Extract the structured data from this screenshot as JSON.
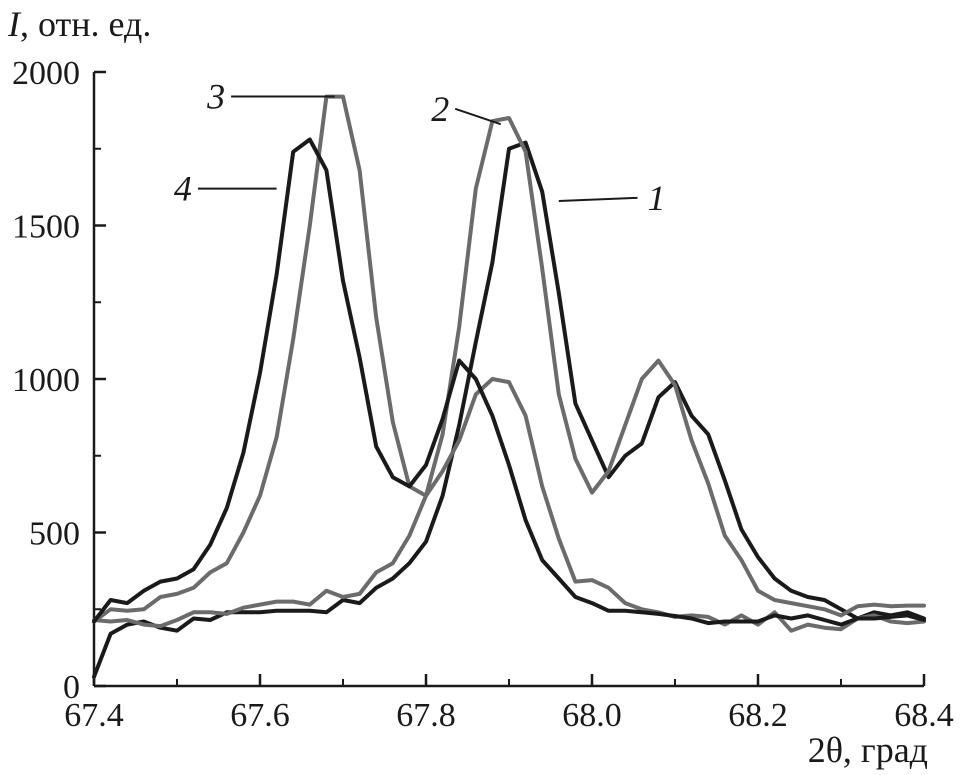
{
  "chart_data": {
    "type": "line",
    "ylabel_symbol": "I",
    "ylabel_rest": ", отн. ед.",
    "xlabel": "2θ, град",
    "xlim": [
      67.4,
      68.4
    ],
    "ylim": [
      0,
      2000
    ],
    "xticks": [
      "67.4",
      "67.6",
      "67.8",
      "68.0",
      "68.2",
      "68.4"
    ],
    "yticks": [
      "0",
      "500",
      "1000",
      "1500",
      "2000"
    ],
    "grid": false,
    "series": [
      {
        "name": "1",
        "color": "#1a1a1a",
        "points": [
          [
            67.4,
            30
          ],
          [
            67.42,
            170
          ],
          [
            67.44,
            200
          ],
          [
            67.46,
            210
          ],
          [
            67.48,
            190
          ],
          [
            67.5,
            180
          ],
          [
            67.52,
            220
          ],
          [
            67.54,
            215
          ],
          [
            67.56,
            240
          ],
          [
            67.58,
            240
          ],
          [
            67.6,
            240
          ],
          [
            67.62,
            245
          ],
          [
            67.64,
            245
          ],
          [
            67.66,
            245
          ],
          [
            67.68,
            240
          ],
          [
            67.7,
            280
          ],
          [
            67.72,
            270
          ],
          [
            67.74,
            320
          ],
          [
            67.76,
            350
          ],
          [
            67.78,
            400
          ],
          [
            67.8,
            470
          ],
          [
            67.82,
            620
          ],
          [
            67.84,
            850
          ],
          [
            67.86,
            1120
          ],
          [
            67.88,
            1380
          ],
          [
            67.9,
            1750
          ],
          [
            67.92,
            1770
          ],
          [
            67.94,
            1610
          ],
          [
            67.96,
            1280
          ],
          [
            67.98,
            920
          ],
          [
            68.0,
            800
          ],
          [
            68.02,
            680
          ],
          [
            68.04,
            750
          ],
          [
            68.06,
            790
          ],
          [
            68.08,
            940
          ],
          [
            68.1,
            990
          ],
          [
            68.12,
            880
          ],
          [
            68.14,
            820
          ],
          [
            68.16,
            670
          ],
          [
            68.18,
            510
          ],
          [
            68.2,
            420
          ],
          [
            68.22,
            350
          ],
          [
            68.24,
            310
          ],
          [
            68.26,
            290
          ],
          [
            68.28,
            280
          ],
          [
            68.3,
            250
          ],
          [
            68.32,
            220
          ],
          [
            68.34,
            240
          ],
          [
            68.36,
            230
          ],
          [
            68.38,
            240
          ],
          [
            68.4,
            220
          ]
        ]
      },
      {
        "name": "2",
        "color": "#6b6b6b",
        "points": [
          [
            67.4,
            215
          ],
          [
            67.42,
            210
          ],
          [
            67.44,
            215
          ],
          [
            67.46,
            200
          ],
          [
            67.48,
            195
          ],
          [
            67.5,
            215
          ],
          [
            67.52,
            240
          ],
          [
            67.54,
            240
          ],
          [
            67.56,
            235
          ],
          [
            67.58,
            255
          ],
          [
            67.6,
            265
          ],
          [
            67.62,
            275
          ],
          [
            67.64,
            275
          ],
          [
            67.66,
            265
          ],
          [
            67.68,
            310
          ],
          [
            67.7,
            290
          ],
          [
            67.72,
            300
          ],
          [
            67.74,
            370
          ],
          [
            67.76,
            400
          ],
          [
            67.78,
            490
          ],
          [
            67.8,
            620
          ],
          [
            67.82,
            820
          ],
          [
            67.84,
            1170
          ],
          [
            67.86,
            1620
          ],
          [
            67.88,
            1840
          ],
          [
            67.9,
            1850
          ],
          [
            67.92,
            1740
          ],
          [
            67.94,
            1360
          ],
          [
            67.96,
            950
          ],
          [
            67.98,
            740
          ],
          [
            68.0,
            630
          ],
          [
            68.02,
            700
          ],
          [
            68.04,
            850
          ],
          [
            68.06,
            1000
          ],
          [
            68.08,
            1060
          ],
          [
            68.1,
            980
          ],
          [
            68.12,
            800
          ],
          [
            68.14,
            660
          ],
          [
            68.16,
            490
          ],
          [
            68.18,
            410
          ],
          [
            68.2,
            310
          ],
          [
            68.22,
            280
          ],
          [
            68.24,
            270
          ],
          [
            68.26,
            260
          ],
          [
            68.28,
            250
          ],
          [
            68.3,
            230
          ],
          [
            68.32,
            260
          ],
          [
            68.34,
            265
          ],
          [
            68.36,
            260
          ],
          [
            68.38,
            262
          ],
          [
            68.4,
            262
          ]
        ]
      },
      {
        "name": "3",
        "color": "#6b6b6b",
        "points": [
          [
            67.4,
            210
          ],
          [
            67.42,
            250
          ],
          [
            67.44,
            245
          ],
          [
            67.46,
            250
          ],
          [
            67.48,
            290
          ],
          [
            67.5,
            300
          ],
          [
            67.52,
            320
          ],
          [
            67.54,
            370
          ],
          [
            67.56,
            400
          ],
          [
            67.58,
            500
          ],
          [
            67.6,
            620
          ],
          [
            67.62,
            810
          ],
          [
            67.64,
            1130
          ],
          [
            67.66,
            1500
          ],
          [
            67.68,
            1920
          ],
          [
            67.7,
            1920
          ],
          [
            67.72,
            1680
          ],
          [
            67.74,
            1200
          ],
          [
            67.76,
            860
          ],
          [
            67.78,
            650
          ],
          [
            67.8,
            620
          ],
          [
            67.82,
            700
          ],
          [
            67.84,
            800
          ],
          [
            67.86,
            950
          ],
          [
            67.88,
            1000
          ],
          [
            67.9,
            990
          ],
          [
            67.92,
            880
          ],
          [
            67.94,
            650
          ],
          [
            67.96,
            480
          ],
          [
            67.98,
            340
          ],
          [
            68.0,
            345
          ],
          [
            68.02,
            320
          ],
          [
            68.04,
            270
          ],
          [
            68.06,
            250
          ],
          [
            68.08,
            240
          ],
          [
            68.1,
            225
          ],
          [
            68.12,
            230
          ],
          [
            68.14,
            225
          ],
          [
            68.16,
            200
          ],
          [
            68.18,
            230
          ],
          [
            68.2,
            200
          ],
          [
            68.22,
            240
          ],
          [
            68.24,
            180
          ],
          [
            68.26,
            200
          ],
          [
            68.28,
            190
          ],
          [
            68.3,
            185
          ],
          [
            68.32,
            220
          ],
          [
            68.34,
            230
          ],
          [
            68.36,
            210
          ],
          [
            68.38,
            205
          ],
          [
            68.4,
            210
          ]
        ]
      },
      {
        "name": "4",
        "color": "#1a1a1a",
        "points": [
          [
            67.4,
            210
          ],
          [
            67.42,
            280
          ],
          [
            67.44,
            270
          ],
          [
            67.46,
            310
          ],
          [
            67.48,
            340
          ],
          [
            67.5,
            350
          ],
          [
            67.52,
            380
          ],
          [
            67.54,
            460
          ],
          [
            67.56,
            580
          ],
          [
            67.58,
            760
          ],
          [
            67.6,
            1020
          ],
          [
            67.62,
            1340
          ],
          [
            67.64,
            1740
          ],
          [
            67.66,
            1780
          ],
          [
            67.68,
            1680
          ],
          [
            67.7,
            1320
          ],
          [
            67.72,
            1070
          ],
          [
            67.74,
            780
          ],
          [
            67.76,
            680
          ],
          [
            67.78,
            650
          ],
          [
            67.8,
            720
          ],
          [
            67.82,
            870
          ],
          [
            67.84,
            1060
          ],
          [
            67.86,
            1000
          ],
          [
            67.88,
            880
          ],
          [
            67.9,
            720
          ],
          [
            67.92,
            540
          ],
          [
            67.94,
            410
          ],
          [
            67.96,
            350
          ],
          [
            67.98,
            290
          ],
          [
            68.0,
            270
          ],
          [
            68.02,
            245
          ],
          [
            68.04,
            245
          ],
          [
            68.06,
            240
          ],
          [
            68.08,
            235
          ],
          [
            68.1,
            228
          ],
          [
            68.12,
            220
          ],
          [
            68.14,
            205
          ],
          [
            68.16,
            210
          ],
          [
            68.18,
            210
          ],
          [
            68.2,
            210
          ],
          [
            68.22,
            230
          ],
          [
            68.24,
            220
          ],
          [
            68.26,
            230
          ],
          [
            68.28,
            215
          ],
          [
            68.3,
            200
          ],
          [
            68.32,
            220
          ],
          [
            68.34,
            220
          ],
          [
            68.36,
            225
          ],
          [
            68.38,
            230
          ],
          [
            68.4,
            215
          ]
        ]
      }
    ],
    "series_labels": [
      {
        "text": "1",
        "x": 67.96,
        "y": 1580,
        "lx": 68.05,
        "ly": 1590
      },
      {
        "text": "2",
        "x": 67.89,
        "y": 1830,
        "lx": 67.84,
        "ly": 1880
      },
      {
        "text": "3",
        "x": 67.69,
        "y": 1920,
        "lx": 67.57,
        "ly": 1920
      },
      {
        "text": "4",
        "x": 67.62,
        "y": 1620,
        "lx": 67.53,
        "ly": 1620
      }
    ]
  }
}
